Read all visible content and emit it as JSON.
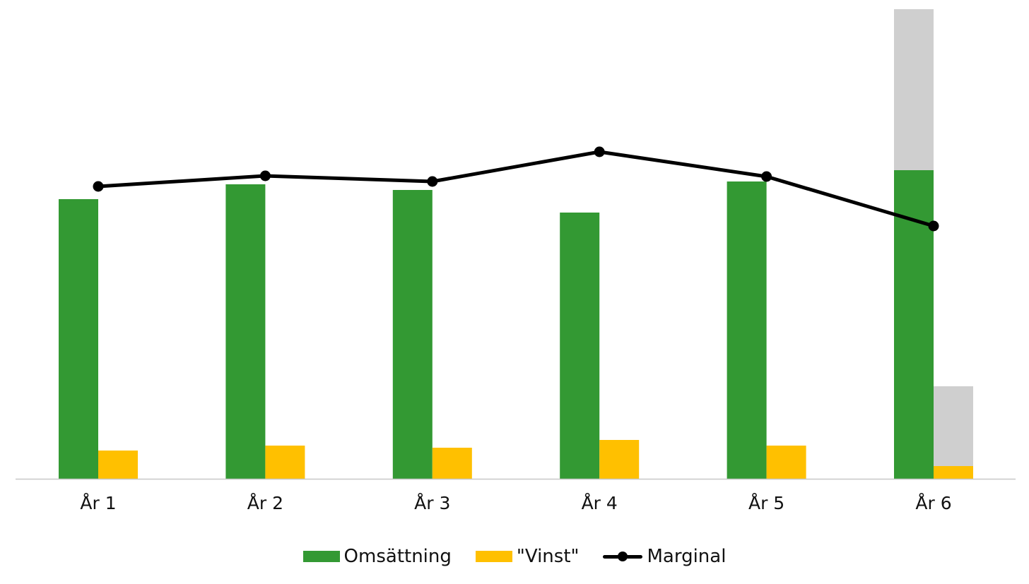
{
  "chart_data": {
    "type": "bar",
    "title": "",
    "xlabel": "",
    "ylabel": "",
    "categories": [
      "År 1",
      "År 2",
      "År 3",
      "År 4",
      "År 5",
      "År 6"
    ],
    "series": [
      {
        "name": "Omsättning",
        "type": "bar",
        "color": "#339933",
        "values": [
          396,
          417,
          409,
          377,
          421,
          437
        ]
      },
      {
        "name": "\"Vinst\"",
        "type": "bar",
        "color": "#ffc000",
        "values": [
          40,
          47,
          44,
          55,
          47,
          18
        ]
      },
      {
        "name": "Marginal",
        "type": "line",
        "color": "#000000",
        "values": [
          414,
          429,
          421,
          463,
          428,
          358
        ]
      }
    ],
    "projection": {
      "color": "#cfcfcf",
      "category": "År 6",
      "omsattning_top": 665,
      "vinst_top": 131
    },
    "ylim": [
      0,
      665
    ],
    "grid": false,
    "legend": "bottom"
  }
}
